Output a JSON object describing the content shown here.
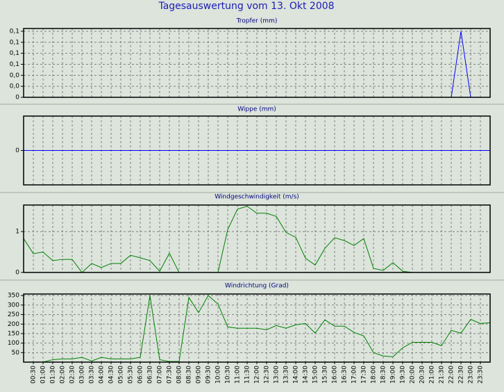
{
  "title": "Tagesauswertung vom 13. Okt 2008",
  "chart_data": [
    {
      "type": "line",
      "title": "Tropfer (mm)",
      "color": "#0000ff",
      "grid": true,
      "values": [
        0,
        0,
        0,
        0,
        0,
        0,
        0,
        0,
        0,
        0,
        0,
        0,
        0,
        0,
        0,
        0,
        0,
        0,
        0,
        0,
        0,
        0,
        0,
        0,
        0,
        0,
        0,
        0,
        0,
        0,
        0,
        0,
        0,
        0,
        0,
        0,
        0,
        0,
        0,
        0,
        0,
        0,
        0,
        0,
        0,
        0.12,
        0,
        0,
        0
      ],
      "ylim": [
        0,
        0.125
      ],
      "yticks": [
        {
          "value": 0,
          "label": "0"
        },
        {
          "value": 0.02,
          "label": "0,0"
        },
        {
          "value": 0.04,
          "label": "0,0"
        },
        {
          "value": 0.06,
          "label": "0,1"
        },
        {
          "value": 0.08,
          "label": "0,1"
        },
        {
          "value": 0.1,
          "label": "0,1"
        },
        {
          "value": 0.12,
          "label": "0,1"
        }
      ]
    },
    {
      "type": "line",
      "title": "Wippe (mm)",
      "color": "#0000ff",
      "grid": true,
      "values": [
        0,
        0,
        0,
        0,
        0,
        0,
        0,
        0,
        0,
        0,
        0,
        0,
        0,
        0,
        0,
        0,
        0,
        0,
        0,
        0,
        0,
        0,
        0,
        0,
        0,
        0,
        0,
        0,
        0,
        0,
        0,
        0,
        0,
        0,
        0,
        0,
        0,
        0,
        0,
        0,
        0,
        0,
        0,
        0,
        0,
        0,
        0,
        0,
        0
      ],
      "ylim": [
        -1,
        1
      ],
      "yticks": [
        0
      ]
    },
    {
      "type": "line",
      "title": "Windgeschwindigkeit (m/s)",
      "color": "#008000",
      "grid": true,
      "values": [
        0.83,
        0.46,
        0.5,
        0.29,
        0.32,
        0.32,
        0,
        0.22,
        0.12,
        0.22,
        0.22,
        0.42,
        0.36,
        0.29,
        0.03,
        0.47,
        0,
        0,
        0,
        0,
        0,
        1.05,
        1.55,
        1.62,
        1.45,
        1.45,
        1.37,
        0.98,
        0.86,
        0.35,
        0.18,
        0.59,
        0.85,
        0.78,
        0.66,
        0.83,
        0.1,
        0.05,
        0.24,
        0.03,
        0,
        0,
        0,
        0,
        0,
        0,
        0,
        0,
        0
      ],
      "ylim": [
        0,
        1.65
      ],
      "yticks": [
        0,
        1
      ]
    },
    {
      "type": "line",
      "title": "Windrichtung (Grad)",
      "color": "#008000",
      "grid": true,
      "categories": [
        null,
        "00:30",
        "01:00",
        "01:30",
        "02:00",
        "02:30",
        "03:00",
        "03:30",
        "04:00",
        "04:30",
        "05:00",
        "05:30",
        "06:00",
        "06:30",
        "07:00",
        "07:30",
        "08:00",
        "08:30",
        "09:00",
        "09:30",
        "10:00",
        "10:30",
        "11:00",
        "11:30",
        "12:00",
        "12:30",
        "13:00",
        "13:30",
        "14:00",
        "14:30",
        "15:00",
        "15:30",
        "16:00",
        "16:30",
        "17:00",
        "17:30",
        "18:00",
        "18:30",
        "19:00",
        "19:30",
        "20:00",
        "20:30",
        "21:00",
        "21:30",
        "22:00",
        "22:30",
        "23:00",
        "23:30",
        null
      ],
      "values": [
        0,
        0,
        0,
        13,
        17,
        17,
        25,
        6,
        25,
        17,
        17,
        17,
        25,
        350,
        13,
        3,
        3,
        340,
        260,
        350,
        305,
        185,
        178,
        178,
        178,
        170,
        192,
        178,
        196,
        203,
        152,
        222,
        189,
        189,
        156,
        138,
        50,
        32,
        28,
        75,
        104,
        104,
        104,
        86,
        167,
        152,
        225,
        203,
        207
      ],
      "ylim": [
        0,
        358
      ],
      "yticks": [
        50,
        100,
        150,
        200,
        250,
        300,
        350
      ]
    }
  ]
}
